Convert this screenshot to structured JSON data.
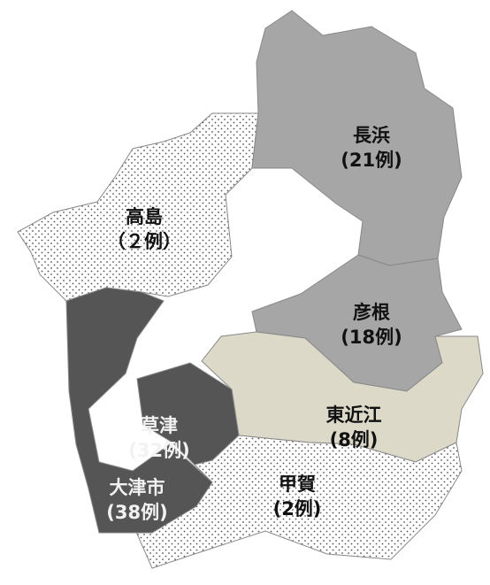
{
  "map": {
    "regions": [
      {
        "name": "高島",
        "label": "（２例）",
        "fill": "dots",
        "text_color": "#111111"
      },
      {
        "name": "長浜",
        "label": "(21例)",
        "fill": "#a6a6a6",
        "text_color": "#111111"
      },
      {
        "name": "彦根",
        "label": "(18例)",
        "fill": "#a6a6a6",
        "text_color": "#111111"
      },
      {
        "name": "東近江",
        "label": "(8例)",
        "fill": "#dcd9c9",
        "text_color": "#111111"
      },
      {
        "name": "甲賀",
        "label": "(2例)",
        "fill": "dots",
        "text_color": "#111111"
      },
      {
        "name": "草津",
        "label": "(32例)",
        "fill": "#555555",
        "text_color": "#f2f2f2"
      },
      {
        "name": "大津市",
        "label": "(38例)",
        "fill": "#555555",
        "text_color": "#f2f2f2"
      }
    ]
  }
}
